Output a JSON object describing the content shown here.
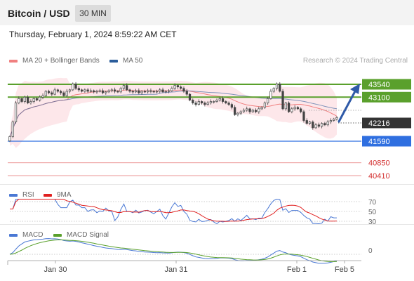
{
  "header": {
    "title": "Bitcoin / USD",
    "timeframe": "30 MIN",
    "datetime": "Thursday, February 1, 2024 8:59:22 AM CET"
  },
  "main_legend": [
    {
      "label": "MA 20 + Bollinger Bands",
      "color": "#f08080"
    },
    {
      "label": "MA 50",
      "color": "#2b5d9b"
    }
  ],
  "credit": "Research © 2024 Trading Central",
  "colors": {
    "candle": "#444444",
    "bollinger_fill": "#fde3e6",
    "ma20": "#f08080",
    "ma50": "#4a6fa5",
    "resistance": "#5aa02c",
    "pivot": "#2f6fe0",
    "support": "#e57373",
    "last_price": "#333333",
    "rsi": "#4a78d4",
    "rsi_ma": "#e02020",
    "macd": "#4a78d4",
    "macd_signal": "#5aa02c",
    "arrow": "#2f5aa8"
  },
  "chart_data": [
    {
      "type": "candlestick",
      "title": "",
      "ylim": [
        40300,
        44300
      ],
      "x_ticks": [
        "Jan 30",
        "Jan 31",
        "Feb 1",
        "Feb 5"
      ],
      "close": [
        41750,
        42250,
        42900,
        43050,
        42950,
        43100,
        42900,
        42950,
        43050,
        43000,
        43100,
        43150,
        43300,
        43250,
        43200,
        43350,
        43300,
        43250,
        43150,
        43300,
        43350,
        43550,
        43400,
        43350,
        43300,
        43350,
        43300,
        43320,
        43280,
        43300,
        43320,
        43250,
        43280,
        43320,
        43350,
        43300,
        43280,
        43400,
        43500,
        43350,
        43300,
        43280,
        43320,
        43250,
        43300,
        43280,
        43320,
        43300,
        43280,
        43300,
        43350,
        43280,
        43300,
        43320,
        43400,
        43500,
        43450,
        43400,
        43300,
        43200,
        43000,
        42900,
        42850,
        42950,
        42900,
        42850,
        42900,
        42950,
        42950,
        43000,
        43050,
        42950,
        42900,
        42850,
        42750,
        42500,
        42550,
        42600,
        42650,
        42700,
        42600,
        42650,
        42600,
        42700,
        42750,
        42900,
        43050,
        43300,
        43400,
        43550,
        43300,
        42700,
        42900,
        42600,
        42700,
        42750,
        42700,
        42600,
        42300,
        42200,
        42250,
        42050,
        42150,
        42100,
        42200,
        42150,
        42250,
        42300,
        42350,
        42400
      ],
      "levels": {
        "resistance": [
          43540,
          43100
        ],
        "pivot": 41590,
        "support": [
          40850,
          40410
        ]
      },
      "last_price": 42216,
      "forecast_target": 43540
    },
    {
      "type": "line",
      "title": "RSI",
      "series": [
        {
          "name": "RSI"
        },
        {
          "name": "9MA"
        }
      ],
      "levels": [
        70,
        50,
        30
      ]
    },
    {
      "type": "line",
      "title": "MACD",
      "series": [
        {
          "name": "MACD"
        },
        {
          "name": "MACD Signal"
        }
      ],
      "levels": [
        0
      ]
    }
  ],
  "labels": {
    "r1": "43540",
    "r2": "43100",
    "last": "42216",
    "pivot": "41590",
    "s1": "40850",
    "s2": "40410",
    "rsi_70": "70",
    "rsi_50": "50",
    "rsi_30": "30",
    "macd_0": "0",
    "rsi_legend": "RSI",
    "rsi_ma_legend": "9MA",
    "macd_legend": "MACD",
    "macd_signal_legend": "MACD Signal"
  }
}
